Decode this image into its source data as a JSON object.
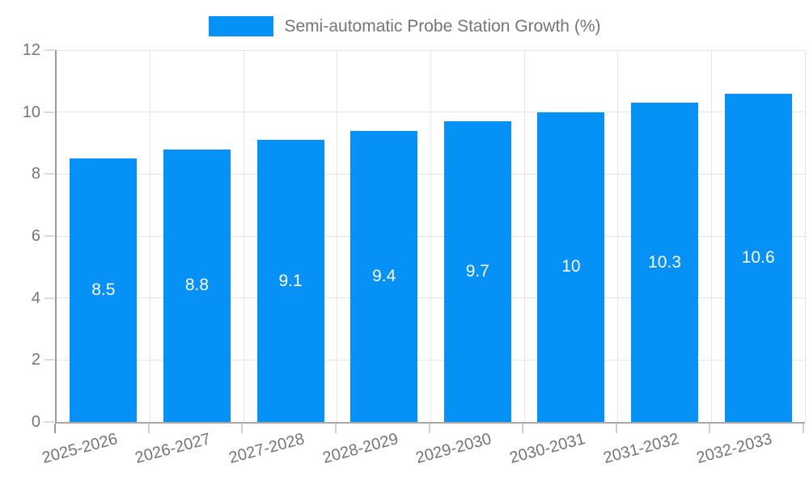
{
  "legend": {
    "label": "Semi-automatic Probe Station Growth (%)",
    "swatch_color": "#0591f5"
  },
  "chart_data": {
    "type": "bar",
    "title": "Semi-automatic Probe Station Growth (%)",
    "categories": [
      "2025-2026",
      "2026-2027",
      "2027-2028",
      "2028-2029",
      "2029-2030",
      "2030-2031",
      "2031-2032",
      "2032-2033"
    ],
    "values": [
      8.5,
      8.8,
      9.1,
      9.4,
      9.7,
      10,
      10.3,
      10.6
    ],
    "value_labels": [
      "8.5",
      "8.8",
      "9.1",
      "9.4",
      "9.7",
      "10",
      "10.3",
      "10.6"
    ],
    "xlabel": "",
    "ylabel": "",
    "ylim": [
      0,
      12
    ],
    "y_ticks": [
      0,
      2,
      4,
      6,
      8,
      10,
      12
    ],
    "grid": true,
    "legend_position": "top",
    "bar_color": "#0591f5",
    "data_label_color": "#ffffff",
    "axis_text_color": "#757575",
    "gridline_color": "#e4e4e4",
    "axis_line_color": "#9a9a9a"
  }
}
